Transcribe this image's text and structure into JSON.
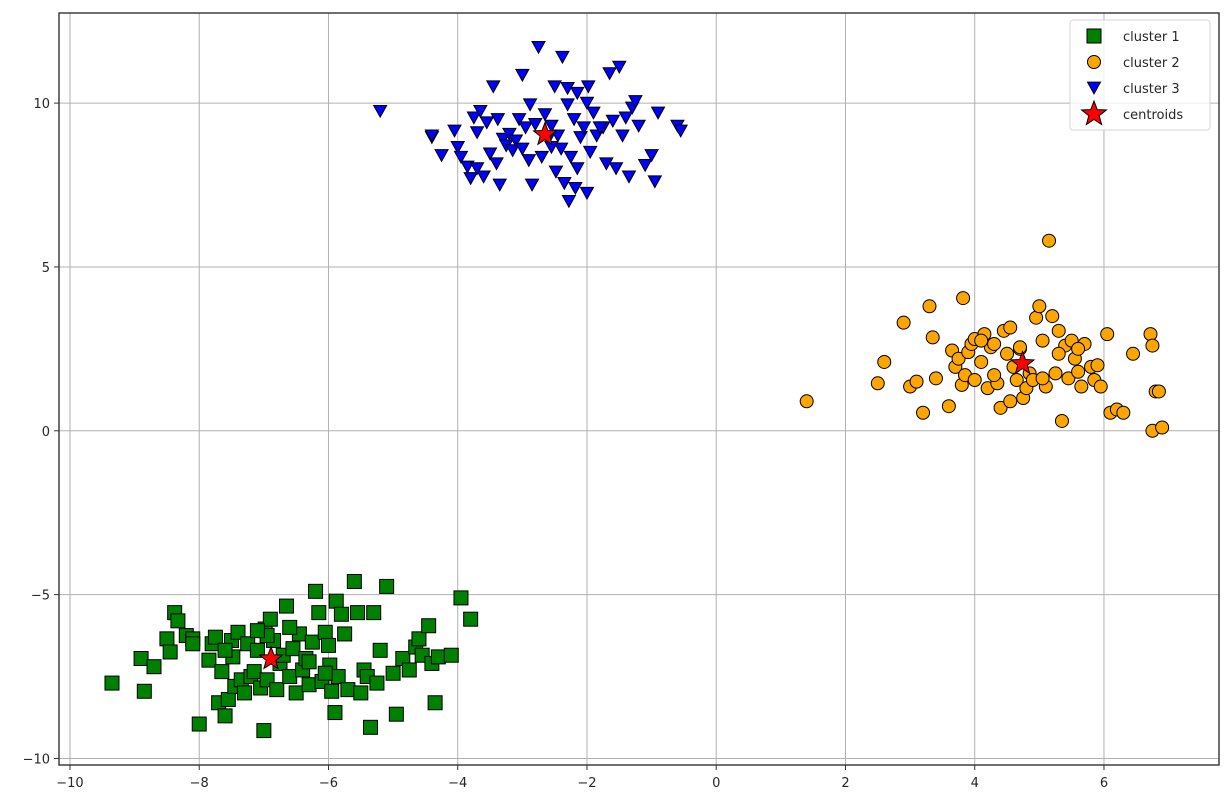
{
  "chart_data": {
    "type": "scatter",
    "title": "",
    "xlabel": "",
    "ylabel": "",
    "xlim": [
      -10.17,
      7.78
    ],
    "ylim": [
      -10.2,
      12.75
    ],
    "grid": true,
    "legend_position": "upper right",
    "x_ticks": [
      -10,
      -8,
      -6,
      -4,
      -2,
      0,
      2,
      4,
      6
    ],
    "x_tick_labels": [
      "−10",
      "−8",
      "−6",
      "−4",
      "−2",
      "0",
      "2",
      "4",
      "6"
    ],
    "y_ticks": [
      -10,
      -5,
      0,
      5,
      10
    ],
    "y_tick_labels": [
      "−10",
      "−5",
      "0",
      "5",
      "10"
    ],
    "series": [
      {
        "name": "cluster 1",
        "marker": "square",
        "color": "#008000",
        "edgecolor": "#000000",
        "points": [
          [
            -9.35,
            -7.7
          ],
          [
            -8.9,
            -6.95
          ],
          [
            -8.85,
            -7.95
          ],
          [
            -8.7,
            -7.2
          ],
          [
            -8.5,
            -6.35
          ],
          [
            -8.45,
            -6.75
          ],
          [
            -8.38,
            -5.55
          ],
          [
            -8.33,
            -5.8
          ],
          [
            -8.2,
            -6.25
          ],
          [
            -8.1,
            -6.35
          ],
          [
            -8.0,
            -8.95
          ],
          [
            -7.85,
            -7.0
          ],
          [
            -7.8,
            -6.5
          ],
          [
            -7.75,
            -6.3
          ],
          [
            -7.7,
            -8.3
          ],
          [
            -7.65,
            -7.35
          ],
          [
            -7.6,
            -8.7
          ],
          [
            -7.55,
            -8.2
          ],
          [
            -7.5,
            -6.4
          ],
          [
            -7.48,
            -6.9
          ],
          [
            -7.45,
            -7.8
          ],
          [
            -7.4,
            -6.15
          ],
          [
            -7.35,
            -7.6
          ],
          [
            -7.3,
            -8.0
          ],
          [
            -7.25,
            -6.5
          ],
          [
            -7.2,
            -7.5
          ],
          [
            -7.15,
            -7.35
          ],
          [
            -7.1,
            -6.7
          ],
          [
            -7.05,
            -7.85
          ],
          [
            -7.0,
            -9.15
          ],
          [
            -6.98,
            -6.05
          ],
          [
            -6.95,
            -7.6
          ],
          [
            -6.9,
            -5.75
          ],
          [
            -6.85,
            -6.4
          ],
          [
            -6.8,
            -7.9
          ],
          [
            -6.75,
            -7.1
          ],
          [
            -6.7,
            -6.85
          ],
          [
            -6.65,
            -5.35
          ],
          [
            -6.6,
            -7.5
          ],
          [
            -6.55,
            -6.65
          ],
          [
            -6.5,
            -8.0
          ],
          [
            -6.45,
            -6.2
          ],
          [
            -6.4,
            -7.3
          ],
          [
            -6.35,
            -6.95
          ],
          [
            -6.3,
            -7.75
          ],
          [
            -6.25,
            -6.45
          ],
          [
            -6.2,
            -4.9
          ],
          [
            -6.15,
            -5.55
          ],
          [
            -6.1,
            -7.65
          ],
          [
            -6.05,
            -6.15
          ],
          [
            -6.0,
            -6.55
          ],
          [
            -5.98,
            -7.15
          ],
          [
            -5.95,
            -7.95
          ],
          [
            -5.9,
            -8.6
          ],
          [
            -5.88,
            -5.2
          ],
          [
            -5.85,
            -7.5
          ],
          [
            -5.8,
            -5.6
          ],
          [
            -5.75,
            -6.2
          ],
          [
            -5.7,
            -7.9
          ],
          [
            -5.6,
            -4.6
          ],
          [
            -5.55,
            -5.55
          ],
          [
            -5.5,
            -8.0
          ],
          [
            -5.45,
            -7.3
          ],
          [
            -5.4,
            -7.5
          ],
          [
            -5.35,
            -9.05
          ],
          [
            -5.3,
            -5.55
          ],
          [
            -5.25,
            -7.7
          ],
          [
            -5.2,
            -6.7
          ],
          [
            -5.1,
            -4.75
          ],
          [
            -5.0,
            -7.4
          ],
          [
            -4.95,
            -8.65
          ],
          [
            -4.85,
            -6.95
          ],
          [
            -4.75,
            -7.3
          ],
          [
            -4.65,
            -6.6
          ],
          [
            -4.6,
            -6.35
          ],
          [
            -4.55,
            -6.85
          ],
          [
            -4.45,
            -5.95
          ],
          [
            -4.4,
            -7.1
          ],
          [
            -4.35,
            -8.3
          ],
          [
            -4.3,
            -6.9
          ],
          [
            -4.1,
            -6.85
          ],
          [
            -3.95,
            -5.1
          ],
          [
            -3.8,
            -5.75
          ],
          [
            -6.95,
            -6.25
          ],
          [
            -6.6,
            -6.0
          ],
          [
            -6.3,
            -7.05
          ],
          [
            -6.05,
            -7.4
          ],
          [
            -7.1,
            -6.1
          ],
          [
            -7.6,
            -6.7
          ],
          [
            -8.1,
            -6.5
          ]
        ]
      },
      {
        "name": "cluster 2",
        "marker": "circle",
        "color": "#FFA500",
        "edgecolor": "#000000",
        "points": [
          [
            1.4,
            0.9
          ],
          [
            2.5,
            1.45
          ],
          [
            2.6,
            2.1
          ],
          [
            2.9,
            3.3
          ],
          [
            3.0,
            1.35
          ],
          [
            3.1,
            1.5
          ],
          [
            3.2,
            0.55
          ],
          [
            3.3,
            3.8
          ],
          [
            3.35,
            2.85
          ],
          [
            3.4,
            1.6
          ],
          [
            3.6,
            0.75
          ],
          [
            3.65,
            2.45
          ],
          [
            3.7,
            1.95
          ],
          [
            3.75,
            2.2
          ],
          [
            3.8,
            1.4
          ],
          [
            3.82,
            4.05
          ],
          [
            3.85,
            1.7
          ],
          [
            3.9,
            2.4
          ],
          [
            3.95,
            2.65
          ],
          [
            4.0,
            2.8
          ],
          [
            4.1,
            2.1
          ],
          [
            4.15,
            2.95
          ],
          [
            4.2,
            1.3
          ],
          [
            4.25,
            2.55
          ],
          [
            4.3,
            2.65
          ],
          [
            4.35,
            1.45
          ],
          [
            4.4,
            0.7
          ],
          [
            4.45,
            3.05
          ],
          [
            4.5,
            2.35
          ],
          [
            4.55,
            3.15
          ],
          [
            4.6,
            1.95
          ],
          [
            4.65,
            1.55
          ],
          [
            4.7,
            2.5
          ],
          [
            4.75,
            1.0
          ],
          [
            4.8,
            1.3
          ],
          [
            4.85,
            1.75
          ],
          [
            4.9,
            1.55
          ],
          [
            4.95,
            3.45
          ],
          [
            5.0,
            3.8
          ],
          [
            5.05,
            2.75
          ],
          [
            5.1,
            1.35
          ],
          [
            5.15,
            5.8
          ],
          [
            5.2,
            3.5
          ],
          [
            5.25,
            1.75
          ],
          [
            5.3,
            3.05
          ],
          [
            5.35,
            0.3
          ],
          [
            5.4,
            2.6
          ],
          [
            5.45,
            1.6
          ],
          [
            5.5,
            2.75
          ],
          [
            5.55,
            2.2
          ],
          [
            5.6,
            1.8
          ],
          [
            5.65,
            1.35
          ],
          [
            5.7,
            2.65
          ],
          [
            5.8,
            1.95
          ],
          [
            5.85,
            1.55
          ],
          [
            5.9,
            2.0
          ],
          [
            5.95,
            1.35
          ],
          [
            6.05,
            2.95
          ],
          [
            6.1,
            0.55
          ],
          [
            6.2,
            0.65
          ],
          [
            6.3,
            0.55
          ],
          [
            6.45,
            2.35
          ],
          [
            6.72,
            2.95
          ],
          [
            6.75,
            2.6
          ],
          [
            6.8,
            1.2
          ],
          [
            6.85,
            1.2
          ],
          [
            6.75,
            0.0
          ],
          [
            6.9,
            0.1
          ],
          [
            4.1,
            2.75
          ],
          [
            4.3,
            1.7
          ],
          [
            4.55,
            0.9
          ],
          [
            4.7,
            2.55
          ],
          [
            4.0,
            1.55
          ],
          [
            5.05,
            1.6
          ],
          [
            5.3,
            2.35
          ],
          [
            5.6,
            2.5
          ]
        ]
      },
      {
        "name": "cluster 3",
        "marker": "triangle-down",
        "color": "#0000FF",
        "edgecolor": "#000000",
        "points": [
          [
            -5.2,
            9.75
          ],
          [
            -4.4,
            8.95
          ],
          [
            -4.25,
            8.4
          ],
          [
            -4.05,
            9.15
          ],
          [
            -4.0,
            8.65
          ],
          [
            -3.95,
            8.35
          ],
          [
            -3.85,
            8.05
          ],
          [
            -3.8,
            7.7
          ],
          [
            -3.75,
            9.55
          ],
          [
            -3.7,
            9.1
          ],
          [
            -3.65,
            9.75
          ],
          [
            -3.6,
            7.75
          ],
          [
            -3.55,
            9.4
          ],
          [
            -3.5,
            8.45
          ],
          [
            -3.45,
            10.5
          ],
          [
            -3.4,
            8.15
          ],
          [
            -3.38,
            9.5
          ],
          [
            -3.35,
            7.5
          ],
          [
            -3.3,
            8.9
          ],
          [
            -3.25,
            8.7
          ],
          [
            -3.2,
            9.05
          ],
          [
            -3.15,
            8.55
          ],
          [
            -3.1,
            8.85
          ],
          [
            -3.05,
            9.5
          ],
          [
            -3.0,
            10.85
          ],
          [
            -2.95,
            9.25
          ],
          [
            -2.9,
            8.25
          ],
          [
            -2.88,
            9.95
          ],
          [
            -2.85,
            7.5
          ],
          [
            -2.8,
            9.35
          ],
          [
            -2.75,
            11.7
          ],
          [
            -2.7,
            8.35
          ],
          [
            -2.65,
            9.65
          ],
          [
            -2.6,
            8.9
          ],
          [
            -2.55,
            9.3
          ],
          [
            -2.5,
            10.5
          ],
          [
            -2.48,
            7.9
          ],
          [
            -2.45,
            9.0
          ],
          [
            -2.4,
            8.6
          ],
          [
            -2.38,
            11.4
          ],
          [
            -2.35,
            7.55
          ],
          [
            -2.3,
            9.95
          ],
          [
            -2.28,
            7.0
          ],
          [
            -2.25,
            8.35
          ],
          [
            -2.2,
            9.5
          ],
          [
            -2.18,
            7.4
          ],
          [
            -2.15,
            10.3
          ],
          [
            -2.1,
            8.95
          ],
          [
            -2.05,
            9.25
          ],
          [
            -2.0,
            7.25
          ],
          [
            -1.98,
            10.5
          ],
          [
            -1.95,
            8.5
          ],
          [
            -1.9,
            9.7
          ],
          [
            -1.85,
            9.0
          ],
          [
            -1.75,
            9.25
          ],
          [
            -1.7,
            8.15
          ],
          [
            -1.65,
            10.9
          ],
          [
            -1.6,
            9.45
          ],
          [
            -1.55,
            8.0
          ],
          [
            -1.5,
            11.1
          ],
          [
            -1.45,
            9.0
          ],
          [
            -1.4,
            9.55
          ],
          [
            -1.35,
            7.75
          ],
          [
            -1.3,
            9.85
          ],
          [
            -1.2,
            9.3
          ],
          [
            -1.1,
            8.1
          ],
          [
            -1.0,
            8.4
          ],
          [
            -0.95,
            7.6
          ],
          [
            -0.9,
            9.7
          ],
          [
            -0.6,
            9.3
          ],
          [
            -0.55,
            9.15
          ],
          [
            -1.8,
            9.25
          ],
          [
            -2.0,
            10.0
          ],
          [
            -2.55,
            8.65
          ],
          [
            -3.0,
            8.6
          ],
          [
            -2.3,
            10.45
          ],
          [
            -1.25,
            10.05
          ],
          [
            -4.4,
            9.0
          ],
          [
            -3.7,
            8.0
          ],
          [
            -2.15,
            8.0
          ]
        ]
      },
      {
        "name": "centroids",
        "marker": "star",
        "color": "#FF0000",
        "edgecolor": "#000000",
        "points": [
          [
            -6.89,
            -6.96
          ],
          [
            4.74,
            2.05
          ],
          [
            -2.65,
            9.04
          ]
        ]
      }
    ]
  },
  "legend": {
    "items": [
      {
        "label": "cluster 1",
        "marker": "square",
        "color": "#008000"
      },
      {
        "label": "cluster 2",
        "marker": "circle",
        "color": "#FFA500"
      },
      {
        "label": "cluster 3",
        "marker": "triangle-down",
        "color": "#0000FF"
      },
      {
        "label": "centroids",
        "marker": "star",
        "color": "#FF0000"
      }
    ]
  }
}
